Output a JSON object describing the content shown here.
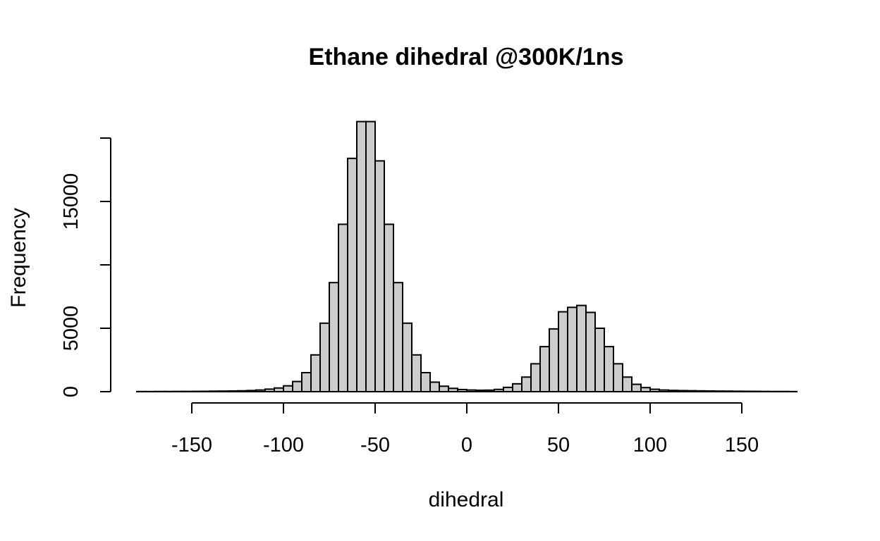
{
  "chart_data": {
    "type": "bar",
    "title": "Ethane dihedral @300K/1ns",
    "xlabel": "dihedral",
    "ylabel": "Frequency",
    "bin_width": 5,
    "xlim": [
      -180,
      180
    ],
    "ylim": [
      0,
      21500
    ],
    "xticks": [
      -150,
      -100,
      -50,
      0,
      50,
      100,
      150
    ],
    "xtick_labels": [
      "-150",
      "-100",
      "-50",
      "0",
      "50",
      "100",
      "150"
    ],
    "yticks": [
      0,
      5000,
      10000,
      15000,
      20000
    ],
    "ytick_labels": [
      "0",
      "5000",
      "",
      "15000",
      ""
    ],
    "bar_color": "#cccccc",
    "bins": [
      {
        "x0": -180,
        "count": 10
      },
      {
        "x0": -175,
        "count": 10
      },
      {
        "x0": -170,
        "count": 15
      },
      {
        "x0": -165,
        "count": 15
      },
      {
        "x0": -160,
        "count": 20
      },
      {
        "x0": -155,
        "count": 20
      },
      {
        "x0": -150,
        "count": 25
      },
      {
        "x0": -145,
        "count": 30
      },
      {
        "x0": -140,
        "count": 40
      },
      {
        "x0": -135,
        "count": 45
      },
      {
        "x0": -130,
        "count": 55
      },
      {
        "x0": -125,
        "count": 70
      },
      {
        "x0": -120,
        "count": 90
      },
      {
        "x0": -115,
        "count": 130
      },
      {
        "x0": -110,
        "count": 200
      },
      {
        "x0": -105,
        "count": 290
      },
      {
        "x0": -100,
        "count": 460
      },
      {
        "x0": -95,
        "count": 800
      },
      {
        "x0": -90,
        "count": 1500
      },
      {
        "x0": -85,
        "count": 2900
      },
      {
        "x0": -80,
        "count": 5400
      },
      {
        "x0": -75,
        "count": 8600
      },
      {
        "x0": -70,
        "count": 13200
      },
      {
        "x0": -65,
        "count": 18400
      },
      {
        "x0": -60,
        "count": 21300
      },
      {
        "x0": -55,
        "count": 21300
      },
      {
        "x0": -50,
        "count": 18200
      },
      {
        "x0": -45,
        "count": 13200
      },
      {
        "x0": -40,
        "count": 8600
      },
      {
        "x0": -35,
        "count": 5400
      },
      {
        "x0": -30,
        "count": 2900
      },
      {
        "x0": -25,
        "count": 1500
      },
      {
        "x0": -20,
        "count": 750
      },
      {
        "x0": -15,
        "count": 430
      },
      {
        "x0": -10,
        "count": 260
      },
      {
        "x0": -5,
        "count": 170
      },
      {
        "x0": 0,
        "count": 130
      },
      {
        "x0": 5,
        "count": 110
      },
      {
        "x0": 10,
        "count": 120
      },
      {
        "x0": 15,
        "count": 180
      },
      {
        "x0": 20,
        "count": 340
      },
      {
        "x0": 25,
        "count": 620
      },
      {
        "x0": 30,
        "count": 1150
      },
      {
        "x0": 35,
        "count": 2200
      },
      {
        "x0": 40,
        "count": 3550
      },
      {
        "x0": 45,
        "count": 4950
      },
      {
        "x0": 50,
        "count": 6300
      },
      {
        "x0": 55,
        "count": 6650
      },
      {
        "x0": 60,
        "count": 6800
      },
      {
        "x0": 65,
        "count": 6250
      },
      {
        "x0": 70,
        "count": 5000
      },
      {
        "x0": 75,
        "count": 3550
      },
      {
        "x0": 80,
        "count": 2200
      },
      {
        "x0": 85,
        "count": 1150
      },
      {
        "x0": 90,
        "count": 580
      },
      {
        "x0": 95,
        "count": 320
      },
      {
        "x0": 100,
        "count": 190
      },
      {
        "x0": 105,
        "count": 130
      },
      {
        "x0": 110,
        "count": 100
      },
      {
        "x0": 115,
        "count": 85
      },
      {
        "x0": 120,
        "count": 75
      },
      {
        "x0": 125,
        "count": 65
      },
      {
        "x0": 130,
        "count": 55
      },
      {
        "x0": 135,
        "count": 45
      },
      {
        "x0": 140,
        "count": 40
      },
      {
        "x0": 145,
        "count": 35
      },
      {
        "x0": 150,
        "count": 30
      },
      {
        "x0": 155,
        "count": 25
      },
      {
        "x0": 160,
        "count": 20
      },
      {
        "x0": 165,
        "count": 15
      },
      {
        "x0": 170,
        "count": 15
      },
      {
        "x0": 175,
        "count": 10
      }
    ]
  }
}
